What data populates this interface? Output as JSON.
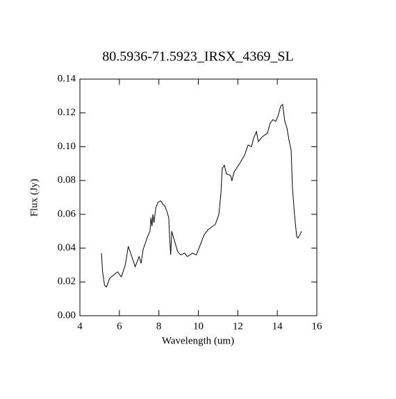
{
  "chart_data": {
    "type": "line",
    "title": "80.5936-71.5923_IRSX_4369_SL",
    "x_label": "Wavelength (um)",
    "y_label": "Flux (Jy)",
    "xlim": [
      4,
      16
    ],
    "xticks": [
      4,
      6,
      8,
      10,
      12,
      14,
      16
    ],
    "ylim": [
      0,
      0.14
    ],
    "yticks": [
      {
        "value": 0,
        "label": "0.00"
      },
      0.02,
      0.04,
      0.06,
      0.08,
      {
        "value": 0.1,
        "label": "0.10"
      },
      0.12,
      0.14
    ],
    "color": "#000000",
    "x": [
      5.09,
      5.15,
      5.25,
      5.35,
      5.5,
      5.7,
      5.9,
      6.1,
      6.3,
      6.45,
      6.6,
      6.8,
      7.0,
      7.1,
      7.2,
      7.4,
      7.55,
      7.6,
      7.65,
      7.7,
      7.75,
      7.85,
      7.95,
      8.1,
      8.2,
      8.3,
      8.4,
      8.5,
      8.55,
      8.6,
      8.65,
      8.8,
      8.95,
      9.1,
      9.3,
      9.45,
      9.7,
      9.9,
      10.1,
      10.3,
      10.5,
      10.86,
      11.04,
      11.14,
      11.21,
      11.32,
      11.42,
      11.63,
      11.7,
      11.81,
      12.09,
      12.34,
      12.52,
      12.69,
      12.8,
      12.94,
      13.04,
      13.25,
      13.5,
      13.64,
      13.78,
      13.92,
      14.03,
      14.17,
      14.27,
      14.38,
      14.49,
      14.59,
      14.7,
      14.77,
      14.87,
      14.98,
      15.05,
      15.15,
      15.22
    ],
    "values": [
      0.037,
      0.026,
      0.018,
      0.017,
      0.022,
      0.024,
      0.026,
      0.023,
      0.03,
      0.041,
      0.036,
      0.029,
      0.035,
      0.031,
      0.039,
      0.046,
      0.05,
      0.058,
      0.053,
      0.06,
      0.055,
      0.064,
      0.067,
      0.068,
      0.066,
      0.065,
      0.062,
      0.058,
      0.045,
      0.036,
      0.05,
      0.044,
      0.038,
      0.036,
      0.037,
      0.035,
      0.037,
      0.036,
      0.042,
      0.048,
      0.051,
      0.054,
      0.06,
      0.072,
      0.087,
      0.089,
      0.084,
      0.083,
      0.08,
      0.085,
      0.09,
      0.095,
      0.101,
      0.1,
      0.105,
      0.109,
      0.103,
      0.106,
      0.108,
      0.114,
      0.116,
      0.115,
      0.118,
      0.124,
      0.125,
      0.115,
      0.111,
      0.104,
      0.098,
      0.075,
      0.06,
      0.047,
      0.046,
      0.048,
      0.05
    ]
  }
}
